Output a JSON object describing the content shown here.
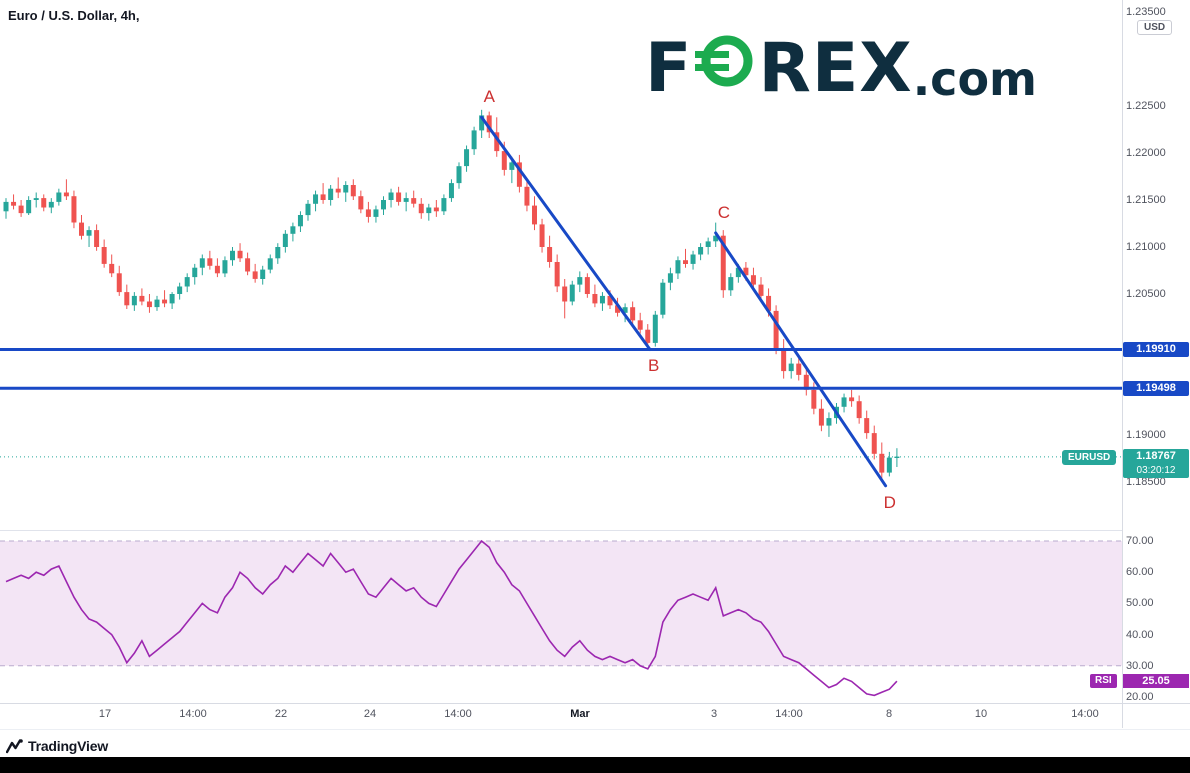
{
  "header": {
    "title": "Euro / U.S. Dollar, 4h,"
  },
  "watermark": {
    "part1": "F",
    "part2": "REX",
    "part3": ".com"
  },
  "price_axis": {
    "currency": "USD"
  },
  "footer": {
    "brand": "TradingView"
  },
  "chart_data": {
    "type": "candlestick",
    "symbol": "EURUSD",
    "interval": "4h",
    "title": "Euro / U.S. Dollar, 4h,",
    "price_pane": {
      "ylim": [
        1.182,
        1.2365
      ],
      "axis_ticks": [
        "1.23500",
        "1.22500",
        "1.22000",
        "1.21500",
        "1.21000",
        "1.20500",
        "1.19000",
        "1.18500"
      ],
      "candles": [
        [
          1.2138,
          1.2152,
          1.213,
          1.2148
        ],
        [
          1.2148,
          1.2156,
          1.214,
          1.2144
        ],
        [
          1.2144,
          1.215,
          1.2132,
          1.2136
        ],
        [
          1.2136,
          1.2154,
          1.2134,
          1.215
        ],
        [
          1.215,
          1.2158,
          1.2142,
          1.2152
        ],
        [
          1.2152,
          1.2156,
          1.2138,
          1.2142
        ],
        [
          1.2142,
          1.2152,
          1.2136,
          1.2148
        ],
        [
          1.2148,
          1.2162,
          1.2144,
          1.2158
        ],
        [
          1.2158,
          1.2172,
          1.215,
          1.2154
        ],
        [
          1.2154,
          1.216,
          1.212,
          1.2126
        ],
        [
          1.2126,
          1.2134,
          1.2108,
          1.2112
        ],
        [
          1.2112,
          1.2122,
          1.21,
          1.2118
        ],
        [
          1.2118,
          1.2124,
          1.2096,
          1.21
        ],
        [
          1.21,
          1.2108,
          1.2078,
          1.2082
        ],
        [
          1.2082,
          1.2092,
          1.2068,
          1.2072
        ],
        [
          1.2072,
          1.208,
          1.2048,
          1.2052
        ],
        [
          1.2052,
          1.206,
          1.2034,
          1.2038
        ],
        [
          1.2038,
          1.2052,
          1.2032,
          1.2048
        ],
        [
          1.2048,
          1.2056,
          1.2038,
          1.2042
        ],
        [
          1.2042,
          1.205,
          1.203,
          1.2036
        ],
        [
          1.2036,
          1.2048,
          1.2032,
          1.2044
        ],
        [
          1.2044,
          1.2054,
          1.2036,
          1.204
        ],
        [
          1.204,
          1.2052,
          1.2034,
          1.205
        ],
        [
          1.205,
          1.2062,
          1.2044,
          1.2058
        ],
        [
          1.2058,
          1.2072,
          1.2052,
          1.2068
        ],
        [
          1.2068,
          1.2082,
          1.206,
          1.2078
        ],
        [
          1.2078,
          1.2092,
          1.207,
          1.2088
        ],
        [
          1.2088,
          1.2096,
          1.2076,
          1.208
        ],
        [
          1.208,
          1.2088,
          1.2068,
          1.2072
        ],
        [
          1.2072,
          1.209,
          1.2068,
          1.2086
        ],
        [
          1.2086,
          1.21,
          1.208,
          1.2096
        ],
        [
          1.2096,
          1.2104,
          1.2084,
          1.2088
        ],
        [
          1.2088,
          1.2094,
          1.207,
          1.2074
        ],
        [
          1.2074,
          1.2082,
          1.2062,
          1.2066
        ],
        [
          1.2066,
          1.208,
          1.206,
          1.2076
        ],
        [
          1.2076,
          1.2092,
          1.2072,
          1.2088
        ],
        [
          1.2088,
          1.2104,
          1.2082,
          1.21
        ],
        [
          1.21,
          1.2118,
          1.2094,
          1.2114
        ],
        [
          1.2114,
          1.2126,
          1.2106,
          1.2122
        ],
        [
          1.2122,
          1.2138,
          1.2116,
          1.2134
        ],
        [
          1.2134,
          1.215,
          1.2128,
          1.2146
        ],
        [
          1.2146,
          1.216,
          1.2138,
          1.2156
        ],
        [
          1.2156,
          1.2168,
          1.2146,
          1.215
        ],
        [
          1.215,
          1.2166,
          1.2144,
          1.2162
        ],
        [
          1.2162,
          1.2174,
          1.2152,
          1.2158
        ],
        [
          1.2158,
          1.217,
          1.2148,
          1.2166
        ],
        [
          1.2166,
          1.2172,
          1.215,
          1.2154
        ],
        [
          1.2154,
          1.216,
          1.2136,
          1.214
        ],
        [
          1.214,
          1.2148,
          1.2126,
          1.2132
        ],
        [
          1.2132,
          1.2144,
          1.2126,
          1.214
        ],
        [
          1.214,
          1.2154,
          1.2134,
          1.215
        ],
        [
          1.215,
          1.2162,
          1.2142,
          1.2158
        ],
        [
          1.2158,
          1.2164,
          1.2144,
          1.2148
        ],
        [
          1.2148,
          1.2158,
          1.2138,
          1.2152
        ],
        [
          1.2152,
          1.216,
          1.2142,
          1.2146
        ],
        [
          1.2146,
          1.2152,
          1.213,
          1.2136
        ],
        [
          1.2136,
          1.2146,
          1.2128,
          1.2142
        ],
        [
          1.2142,
          1.215,
          1.2132,
          1.2138
        ],
        [
          1.2138,
          1.2156,
          1.2134,
          1.2152
        ],
        [
          1.2152,
          1.2172,
          1.2148,
          1.2168
        ],
        [
          1.2168,
          1.219,
          1.2162,
          1.2186
        ],
        [
          1.2186,
          1.2208,
          1.218,
          1.2204
        ],
        [
          1.2204,
          1.2228,
          1.2198,
          1.2224
        ],
        [
          1.2224,
          1.2246,
          1.2216,
          1.224
        ],
        [
          1.224,
          1.2244,
          1.2216,
          1.2222
        ],
        [
          1.2222,
          1.2238,
          1.2196,
          1.2202
        ],
        [
          1.2202,
          1.2212,
          1.2176,
          1.2182
        ],
        [
          1.2182,
          1.2196,
          1.2168,
          1.219
        ],
        [
          1.219,
          1.2198,
          1.2158,
          1.2164
        ],
        [
          1.2164,
          1.2172,
          1.2138,
          1.2144
        ],
        [
          1.2144,
          1.2154,
          1.2118,
          1.2124
        ],
        [
          1.2124,
          1.213,
          1.2094,
          1.21
        ],
        [
          1.21,
          1.2112,
          1.2078,
          1.2084
        ],
        [
          1.2084,
          1.2092,
          1.2052,
          1.2058
        ],
        [
          1.2058,
          1.2066,
          1.2024,
          1.2042
        ],
        [
          1.2042,
          1.2064,
          1.2038,
          1.206
        ],
        [
          1.206,
          1.2074,
          1.2052,
          1.2068
        ],
        [
          1.2068,
          1.2072,
          1.2046,
          1.205
        ],
        [
          1.205,
          1.206,
          1.2036,
          1.204
        ],
        [
          1.204,
          1.2052,
          1.2032,
          1.2048
        ],
        [
          1.2048,
          1.2054,
          1.2034,
          1.2038
        ],
        [
          1.2038,
          1.2046,
          1.2026,
          1.203
        ],
        [
          1.203,
          1.204,
          1.202,
          1.2036
        ],
        [
          1.2036,
          1.2042,
          1.2018,
          1.2022
        ],
        [
          1.2022,
          1.203,
          1.2008,
          1.2012
        ],
        [
          1.2012,
          1.2018,
          1.1994,
          1.1998
        ],
        [
          1.1998,
          1.2032,
          1.1994,
          1.2028
        ],
        [
          1.2028,
          1.2066,
          1.2024,
          1.2062
        ],
        [
          1.2062,
          1.2078,
          1.2054,
          1.2072
        ],
        [
          1.2072,
          1.209,
          1.2066,
          1.2086
        ],
        [
          1.2086,
          1.2098,
          1.2078,
          1.2082
        ],
        [
          1.2082,
          1.2096,
          1.2076,
          1.2092
        ],
        [
          1.2092,
          1.2104,
          1.2086,
          1.21
        ],
        [
          1.21,
          1.211,
          1.2092,
          1.2106
        ],
        [
          1.2106,
          1.2126,
          1.21,
          1.2112
        ],
        [
          1.2112,
          1.2118,
          1.2046,
          1.2054
        ],
        [
          1.2054,
          1.2072,
          1.2048,
          1.2068
        ],
        [
          1.2068,
          1.2082,
          1.2062,
          1.2078
        ],
        [
          1.2078,
          1.2084,
          1.2064,
          1.207
        ],
        [
          1.207,
          1.2078,
          1.2054,
          1.206
        ],
        [
          1.206,
          1.2068,
          1.2042,
          1.2048
        ],
        [
          1.2048,
          1.2056,
          1.2026,
          1.2032
        ],
        [
          1.2032,
          1.2038,
          1.1986,
          1.1992
        ],
        [
          1.1992,
          1.2002,
          1.196,
          1.1968
        ],
        [
          1.1968,
          1.1982,
          1.196,
          1.1976
        ],
        [
          1.1976,
          1.1984,
          1.1958,
          1.1964
        ],
        [
          1.1964,
          1.1972,
          1.1942,
          1.1948
        ],
        [
          1.1948,
          1.1956,
          1.1922,
          1.1928
        ],
        [
          1.1928,
          1.1938,
          1.1904,
          1.191
        ],
        [
          1.191,
          1.1924,
          1.1898,
          1.1918
        ],
        [
          1.1918,
          1.1934,
          1.1912,
          1.193
        ],
        [
          1.193,
          1.1944,
          1.1924,
          1.194
        ],
        [
          1.194,
          1.1948,
          1.193,
          1.1936
        ],
        [
          1.1936,
          1.1942,
          1.1912,
          1.1918
        ],
        [
          1.1918,
          1.1926,
          1.1896,
          1.1902
        ],
        [
          1.1902,
          1.191,
          1.1874,
          1.188
        ],
        [
          1.188,
          1.1892,
          1.1854,
          1.186
        ],
        [
          1.186,
          1.1882,
          1.1856,
          1.1876
        ],
        [
          1.1876,
          1.1886,
          1.1866,
          1.1877
        ]
      ]
    },
    "levels": [
      {
        "label": "1.19910",
        "value": 1.1991
      },
      {
        "label": "1.19498",
        "value": 1.19498
      }
    ],
    "last_price": {
      "symbol_badge": "EURUSD",
      "label": "1.18767",
      "value": 1.18767,
      "countdown": "03:20:12"
    },
    "trendlines": [
      {
        "start_label": "A",
        "end_label": "B",
        "from": {
          "index": 63,
          "price": 1.2238
        },
        "to": {
          "index": 85.3,
          "price": 1.1991
        }
      },
      {
        "start_label": "C",
        "end_label": "D",
        "from": {
          "index": 94,
          "price": 1.2115
        },
        "to": {
          "index": 116.5,
          "price": 1.1846
        }
      }
    ],
    "time_axis": [
      "17",
      "14:00",
      "22",
      "24",
      "14:00",
      "Mar",
      "3",
      "14:00",
      "8",
      "10",
      "14:00"
    ],
    "rsi_pane": {
      "name": "RSI",
      "last_value": "25.05",
      "ylim": [
        17,
        75
      ],
      "band": [
        30,
        70
      ],
      "axis_ticks": [
        "70.00",
        "60.00",
        "50.00",
        "40.00",
        "30.00",
        "20.00"
      ],
      "values": [
        57,
        58,
        59,
        58,
        60,
        59,
        61,
        62,
        57,
        52,
        48,
        45,
        44,
        42,
        40,
        36,
        31,
        34,
        38,
        33,
        35,
        37,
        39,
        41,
        44,
        47,
        50,
        48,
        47,
        52,
        55,
        60,
        58,
        55,
        53,
        56,
        58,
        62,
        60,
        63,
        66,
        64,
        62,
        66,
        63,
        60,
        61,
        57,
        53,
        52,
        55,
        58,
        56,
        54,
        55,
        52,
        50,
        49,
        53,
        57,
        61,
        64,
        67,
        70,
        68,
        63,
        60,
        56,
        54,
        50,
        46,
        42,
        38,
        35,
        33,
        36,
        38,
        35,
        33,
        32,
        33,
        32,
        31,
        32,
        30,
        29,
        33,
        44,
        48,
        51,
        52,
        53,
        52,
        51,
        55,
        46,
        47,
        48,
        47,
        45,
        44,
        41,
        37,
        33,
        32,
        31,
        29,
        27,
        25,
        23,
        24,
        26,
        25,
        23,
        21,
        20.5,
        21.5,
        22.5,
        25.05
      ]
    },
    "colors": {
      "up": "#26a69a",
      "down": "#ef5350",
      "line_blue": "#1849c6",
      "annotation_red": "#cc3030",
      "last_price_bg": "#26a69a",
      "rsi_line": "#9c27b0",
      "axis_text": "#50535e",
      "logo_navy": "#0f2e3f",
      "logo_green": "#1cab4f"
    }
  }
}
